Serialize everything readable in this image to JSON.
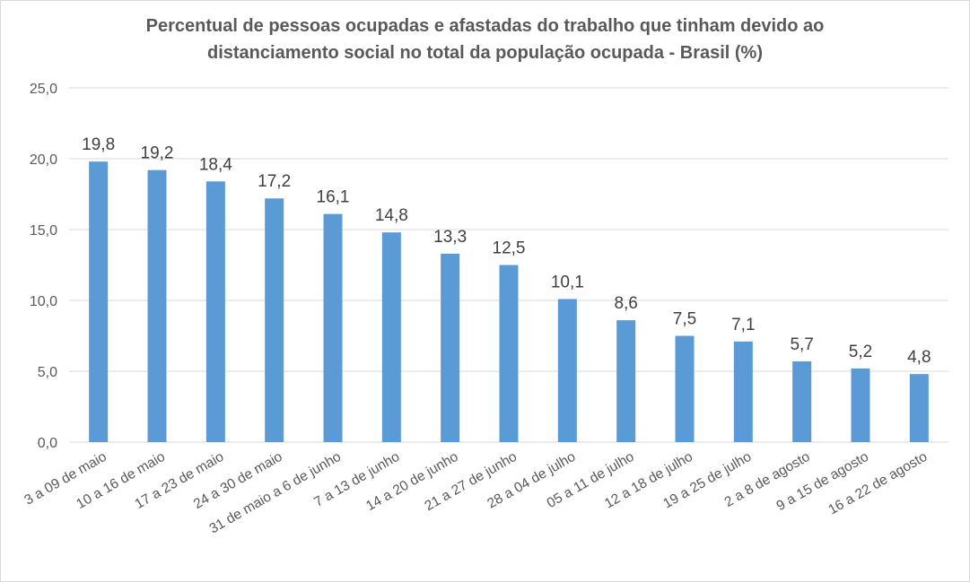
{
  "chart_data": {
    "type": "bar",
    "title": "Percentual de pessoas ocupadas e afastadas do trabalho que tinham devido ao distanciamento social no total da população ocupada - Brasil (%)",
    "title_lines": [
      "Percentual de pessoas ocupadas e afastadas do trabalho que tinham devido ao",
      "distanciamento social no total da população ocupada - Brasil (%)"
    ],
    "categories": [
      "3 a 09 de maio",
      "10 a 16 de maio",
      "17 a 23 de maio",
      "24 a 30 de maio",
      "31 de maio a 6 de junho",
      "7 a 13 de junho",
      "14 a 20 de junho",
      "21 a 27 de junho",
      "28 a 04 de julho",
      "05 a 11 de julho",
      "12 a 18 de julho",
      "19 a 25 de julho",
      "2 a 8 de agosto",
      "9 a 15 de agosto",
      "16 a 22 de agosto"
    ],
    "values": [
      19.8,
      19.2,
      18.4,
      17.2,
      16.1,
      14.8,
      13.3,
      12.5,
      10.1,
      8.6,
      7.5,
      7.1,
      5.7,
      5.2,
      4.8
    ],
    "data_labels": [
      "19,8",
      "19,2",
      "18,4",
      "17,2",
      "16,1",
      "14,8",
      "13,3",
      "12,5",
      "10,1",
      "8,6",
      "7,5",
      "7,1",
      "5,7",
      "5,2",
      "4,8"
    ],
    "y_ticks": [
      0,
      5,
      10,
      15,
      20,
      25
    ],
    "y_tick_labels": [
      "0,0",
      "5,0",
      "10,0",
      "15,0",
      "20,0",
      "25,0"
    ],
    "ylim": [
      0,
      25
    ],
    "xlabel": "",
    "ylabel": "",
    "grid": true,
    "legend": "none",
    "colors": {
      "bar": "#5b9bd5",
      "grid": "#d9d9d9",
      "text": "#595959"
    }
  }
}
